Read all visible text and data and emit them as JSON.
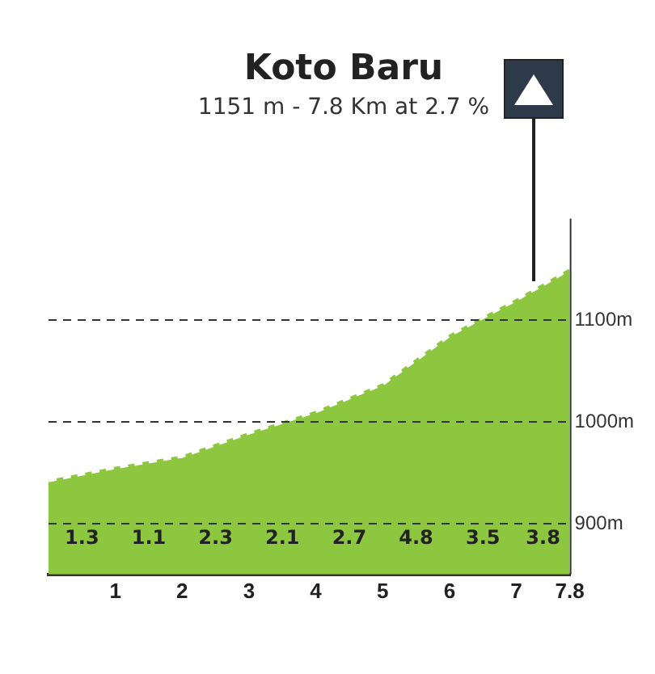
{
  "chart_data": {
    "type": "area",
    "title": "Koto Baru",
    "subtitle": "1151 m - 7.8 Km at 2.7 %",
    "x": [
      0,
      1,
      2,
      3,
      4,
      5,
      6,
      7,
      7.8
    ],
    "values": [
      943,
      956,
      967,
      990,
      1011,
      1038,
      1086,
      1121,
      1151
    ],
    "color": "#8dc63f",
    "xlim": [
      0,
      7.8
    ],
    "xticks": [
      1,
      2,
      3,
      4,
      5,
      6,
      7,
      7.8
    ],
    "ylim": [
      850,
      1200
    ],
    "yticks": [
      {
        "value": 900,
        "label": "900m"
      },
      {
        "value": 1000,
        "label": "1000m"
      },
      {
        "value": 1100,
        "label": "1100m"
      }
    ],
    "grid": "y",
    "line_style": "dashed",
    "annotations": [
      "1.3",
      "1.1",
      "2.3",
      "2.1",
      "2.7",
      "4.8",
      "3.5",
      "3.8"
    ]
  }
}
